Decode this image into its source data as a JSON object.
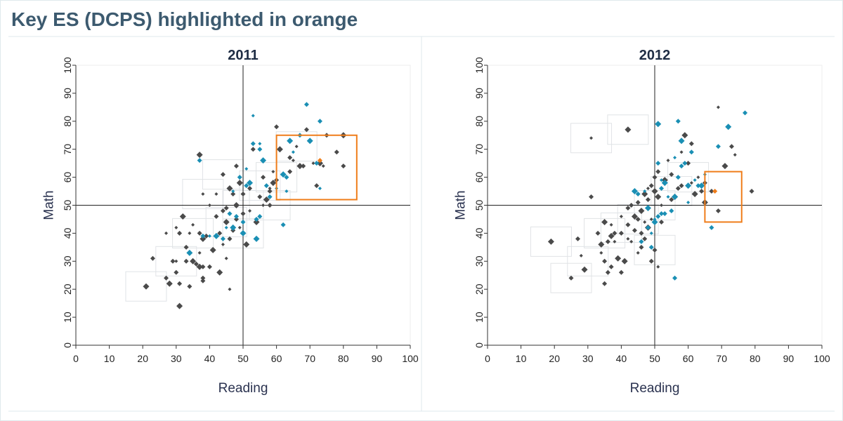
{
  "title": "Key ES (DCPS) highlighted in orange",
  "colors": {
    "dark_point": "#4a4a4a",
    "blue_point": "#1a8fb4",
    "highlight": "#ef7d1a",
    "box_outline": "#e0e3e6",
    "reference_line": "#222222"
  },
  "chart_data": [
    {
      "type": "scatter",
      "title": "2011",
      "xlabel": "Reading",
      "ylabel": "Math",
      "xlim": [
        0,
        100
      ],
      "ylim": [
        0,
        100
      ],
      "xticks": [
        "0",
        "10",
        "20",
        "30",
        "40",
        "50",
        "60",
        "70",
        "80",
        "90",
        "100"
      ],
      "yticks": [
        "0",
        "10",
        "20",
        "30",
        "40",
        "50",
        "60",
        "70",
        "80",
        "90",
        "100"
      ],
      "reference_lines": {
        "x": 50,
        "y": 50
      },
      "highlight_box": {
        "x": [
          60,
          84
        ],
        "y": [
          52,
          75
        ]
      },
      "highlight_point": {
        "x": 73,
        "y": 66
      },
      "dark_points": [
        [
          21,
          21
        ],
        [
          23,
          31
        ],
        [
          27,
          24
        ],
        [
          27,
          40
        ],
        [
          28,
          22
        ],
        [
          29,
          30
        ],
        [
          30,
          30
        ],
        [
          30,
          26
        ],
        [
          31,
          14
        ],
        [
          30,
          42
        ],
        [
          31,
          40
        ],
        [
          31,
          22
        ],
        [
          32,
          46
        ],
        [
          33,
          30
        ],
        [
          33,
          35
        ],
        [
          34,
          40
        ],
        [
          35,
          30
        ],
        [
          34,
          21
        ],
        [
          35,
          43
        ],
        [
          36,
          29
        ],
        [
          37,
          28
        ],
        [
          37,
          33
        ],
        [
          37,
          40
        ],
        [
          38,
          24
        ],
        [
          38,
          38
        ],
        [
          38,
          28
        ],
        [
          38,
          23
        ],
        [
          38,
          54
        ],
        [
          37,
          68
        ],
        [
          39,
          39
        ],
        [
          40,
          50
        ],
        [
          40,
          28
        ],
        [
          41,
          34
        ],
        [
          42,
          54
        ],
        [
          42,
          46
        ],
        [
          43,
          40
        ],
        [
          43,
          26
        ],
        [
          44,
          61
        ],
        [
          44,
          48
        ],
        [
          44,
          36
        ],
        [
          45,
          44
        ],
        [
          45,
          49
        ],
        [
          45,
          31
        ],
        [
          46,
          38
        ],
        [
          46,
          56
        ],
        [
          46,
          20
        ],
        [
          47,
          41
        ],
        [
          47,
          54
        ],
        [
          48,
          50
        ],
        [
          48,
          45
        ],
        [
          48,
          64
        ],
        [
          49,
          42
        ],
        [
          49,
          58
        ],
        [
          50,
          47
        ],
        [
          50,
          44
        ],
        [
          50,
          54
        ],
        [
          51,
          36
        ],
        [
          52,
          48
        ],
        [
          52,
          56
        ],
        [
          53,
          70
        ],
        [
          54,
          44
        ],
        [
          55,
          53
        ],
        [
          56,
          60
        ],
        [
          56,
          50
        ],
        [
          57,
          52
        ],
        [
          58,
          50
        ],
        [
          58,
          56
        ],
        [
          58,
          55
        ],
        [
          59,
          58
        ],
        [
          59,
          62
        ],
        [
          60,
          59
        ],
        [
          60,
          78
        ],
        [
          61,
          70
        ],
        [
          64,
          62
        ],
        [
          64,
          67
        ],
        [
          65,
          66
        ],
        [
          67,
          64
        ],
        [
          68,
          64
        ],
        [
          71,
          65
        ],
        [
          72,
          57
        ],
        [
          73,
          65
        ],
        [
          74,
          64
        ],
        [
          75,
          75
        ],
        [
          78,
          69
        ],
        [
          80,
          75
        ],
        [
          80,
          64
        ],
        [
          69,
          77
        ],
        [
          66,
          71
        ]
      ],
      "blue_points": [
        [
          34,
          33
        ],
        [
          37,
          66
        ],
        [
          38,
          39
        ],
        [
          40,
          39
        ],
        [
          42,
          39
        ],
        [
          44,
          38
        ],
        [
          45,
          42
        ],
        [
          46,
          47
        ],
        [
          47,
          42
        ],
        [
          47,
          55
        ],
        [
          48,
          46
        ],
        [
          49,
          60
        ],
        [
          50,
          40
        ],
        [
          50,
          44
        ],
        [
          51,
          57
        ],
        [
          51,
          63
        ],
        [
          52,
          58
        ],
        [
          53,
          72
        ],
        [
          53,
          82
        ],
        [
          54,
          45
        ],
        [
          54,
          38
        ],
        [
          55,
          72
        ],
        [
          55,
          70
        ],
        [
          55,
          46
        ],
        [
          56,
          66
        ],
        [
          57,
          57
        ],
        [
          58,
          53
        ],
        [
          60,
          56
        ],
        [
          62,
          61
        ],
        [
          62,
          43
        ],
        [
          63,
          55
        ],
        [
          63,
          60
        ],
        [
          64,
          73
        ],
        [
          65,
          69
        ],
        [
          67,
          75
        ],
        [
          69,
          86
        ],
        [
          70,
          73
        ],
        [
          72,
          65
        ],
        [
          73,
          80
        ],
        [
          73,
          56
        ]
      ],
      "box_hints": [
        [
          21,
          21
        ],
        [
          30,
          30
        ],
        [
          35,
          40
        ],
        [
          45,
          44
        ],
        [
          50,
          50
        ],
        [
          55,
          57
        ],
        [
          60,
          60
        ],
        [
          38,
          54
        ],
        [
          44,
          61
        ],
        [
          50,
          40
        ],
        [
          58,
          50
        ],
        [
          66,
          71
        ]
      ]
    },
    {
      "type": "scatter",
      "title": "2012",
      "xlabel": "Reading",
      "ylabel": "Math",
      "xlim": [
        0,
        100
      ],
      "ylim": [
        0,
        100
      ],
      "xticks": [
        "0",
        "10",
        "20",
        "30",
        "40",
        "50",
        "60",
        "70",
        "80",
        "90",
        "100"
      ],
      "yticks": [
        "0",
        "10",
        "20",
        "30",
        "40",
        "50",
        "60",
        "70",
        "80",
        "90",
        "100"
      ],
      "reference_lines": {
        "x": 50,
        "y": 50
      },
      "highlight_box": {
        "x": [
          65,
          76
        ],
        "y": [
          44,
          62
        ]
      },
      "highlight_point": {
        "x": 68,
        "y": 55
      },
      "dark_points": [
        [
          19,
          37
        ],
        [
          25,
          24
        ],
        [
          27,
          38
        ],
        [
          28,
          32
        ],
        [
          29,
          27
        ],
        [
          31,
          53
        ],
        [
          31,
          74
        ],
        [
          33,
          40
        ],
        [
          34,
          36
        ],
        [
          34,
          33
        ],
        [
          35,
          30
        ],
        [
          35,
          22
        ],
        [
          35,
          44
        ],
        [
          36,
          37
        ],
        [
          36,
          26
        ],
        [
          37,
          43
        ],
        [
          37,
          39
        ],
        [
          37,
          28
        ],
        [
          38,
          37
        ],
        [
          38,
          40
        ],
        [
          39,
          31
        ],
        [
          40,
          46
        ],
        [
          40,
          40
        ],
        [
          40,
          26
        ],
        [
          41,
          30
        ],
        [
          42,
          43
        ],
        [
          42,
          49
        ],
        [
          42,
          38
        ],
        [
          42,
          77
        ],
        [
          43,
          50
        ],
        [
          43,
          37
        ],
        [
          44,
          41
        ],
        [
          44,
          46
        ],
        [
          45,
          33
        ],
        [
          45,
          45
        ],
        [
          45,
          51
        ],
        [
          46,
          48
        ],
        [
          46,
          40
        ],
        [
          46,
          35
        ],
        [
          47,
          44
        ],
        [
          47,
          54
        ],
        [
          47,
          38
        ],
        [
          48,
          56
        ],
        [
          48,
          52
        ],
        [
          48,
          42
        ],
        [
          49,
          45
        ],
        [
          49,
          57
        ],
        [
          49,
          30
        ],
        [
          50,
          55
        ],
        [
          50,
          60
        ],
        [
          50,
          34
        ],
        [
          51,
          28
        ],
        [
          51,
          53
        ],
        [
          51,
          62
        ],
        [
          52,
          50
        ],
        [
          52,
          44
        ],
        [
          53,
          59
        ],
        [
          54,
          66
        ],
        [
          55,
          52
        ],
        [
          55,
          61
        ],
        [
          56,
          53
        ],
        [
          57,
          56
        ],
        [
          58,
          57
        ],
        [
          58,
          69
        ],
        [
          59,
          75
        ],
        [
          60,
          65
        ],
        [
          61,
          58
        ],
        [
          61,
          72
        ],
        [
          62,
          54
        ],
        [
          63,
          60
        ],
        [
          64,
          55
        ],
        [
          65,
          58
        ],
        [
          65,
          51
        ],
        [
          67,
          55
        ],
        [
          69,
          48
        ],
        [
          69,
          85
        ],
        [
          71,
          64
        ],
        [
          73,
          71
        ],
        [
          74,
          68
        ],
        [
          79,
          55
        ]
      ],
      "blue_points": [
        [
          44,
          55
        ],
        [
          45,
          54
        ],
        [
          46,
          37
        ],
        [
          47,
          55
        ],
        [
          48,
          49
        ],
        [
          48,
          42
        ],
        [
          49,
          40
        ],
        [
          49,
          35
        ],
        [
          50,
          44
        ],
        [
          50,
          45
        ],
        [
          51,
          46
        ],
        [
          51,
          65
        ],
        [
          51,
          79
        ],
        [
          52,
          56
        ],
        [
          52,
          47
        ],
        [
          52,
          59
        ],
        [
          53,
          58
        ],
        [
          53,
          47
        ],
        [
          54,
          53
        ],
        [
          55,
          48
        ],
        [
          56,
          53
        ],
        [
          56,
          67
        ],
        [
          57,
          60
        ],
        [
          57,
          80
        ],
        [
          58,
          73
        ],
        [
          58,
          64
        ],
        [
          59,
          65
        ],
        [
          60,
          51
        ],
        [
          60,
          57
        ],
        [
          61,
          69
        ],
        [
          62,
          59
        ],
        [
          63,
          57
        ],
        [
          64,
          57
        ],
        [
          65,
          61
        ],
        [
          67,
          42
        ],
        [
          69,
          71
        ],
        [
          72,
          78
        ],
        [
          77,
          83
        ],
        [
          56,
          24
        ]
      ],
      "box_hints": [
        [
          19,
          37
        ],
        [
          25,
          24
        ],
        [
          30,
          30
        ],
        [
          35,
          40
        ],
        [
          40,
          42
        ],
        [
          45,
          45
        ],
        [
          50,
          50
        ],
        [
          55,
          55
        ],
        [
          60,
          60
        ],
        [
          31,
          74
        ],
        [
          42,
          77
        ],
        [
          50,
          34
        ]
      ]
    }
  ]
}
